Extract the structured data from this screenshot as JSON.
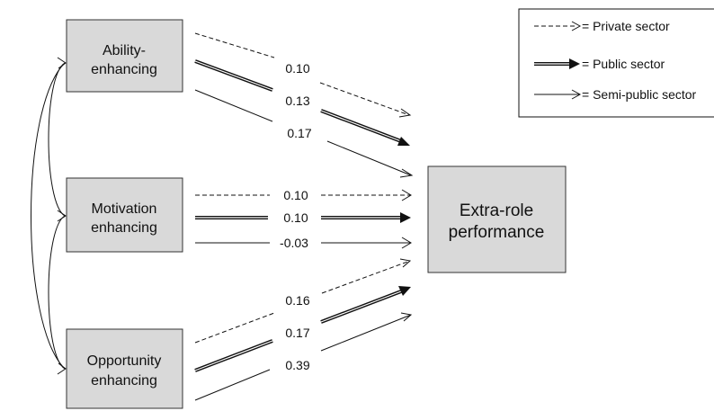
{
  "nodes": {
    "ability": {
      "line1": "Ability-",
      "line2": "enhancing"
    },
    "motivation": {
      "line1": "Motivation",
      "line2": "enhancing"
    },
    "opportunity": {
      "line1": "Opportunity",
      "line2": "enhancing"
    },
    "outcome": {
      "line1": "Extra-role",
      "line2": "performance"
    }
  },
  "paths": {
    "ability": {
      "private": "0.10",
      "public": "0.13",
      "semi_public": "0.17"
    },
    "motivation": {
      "private": "0.10",
      "public": "0.10",
      "semi_public": "-0.03"
    },
    "opportunity": {
      "private": "0.16",
      "public": "0.17",
      "semi_public": "0.39"
    }
  },
  "legend": {
    "private": "= Private sector",
    "public": "= Public sector",
    "semi_public": "= Semi-public sector"
  }
}
